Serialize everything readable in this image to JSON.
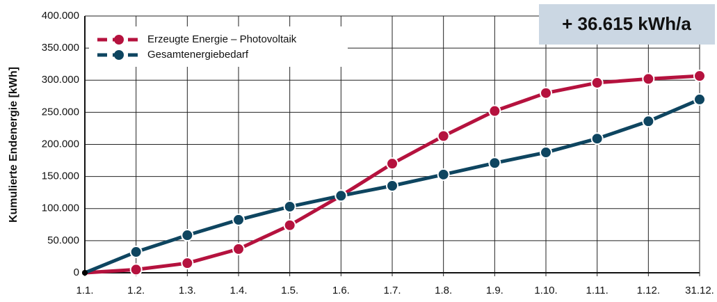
{
  "chart_data": {
    "type": "line",
    "ylabel": "Kumulierte Endenergie [kWh]",
    "annotation": "+ 36.615 kWh/a",
    "categories": [
      "1.1.",
      "1.2.",
      "1.3.",
      "1.4.",
      "1.5.",
      "1.6.",
      "1.7.",
      "1.8.",
      "1.9.",
      "1.10.",
      "1.11.",
      "1.12.",
      "31.12."
    ],
    "series": [
      {
        "name": "Erzeugte Energie – Photovoltaik",
        "color": "#b5123e",
        "values": [
          0,
          5000,
          15000,
          37000,
          74000,
          120000,
          170000,
          213000,
          252000,
          280000,
          296000,
          302000,
          306615
        ]
      },
      {
        "name": "Gesamtenergiebedarf",
        "color": "#0e4560",
        "values": [
          0,
          32500,
          58500,
          82500,
          103000,
          120000,
          135500,
          153000,
          171000,
          187500,
          209000,
          236000,
          270000
        ]
      }
    ],
    "ylim": [
      0,
      400000
    ],
    "yticks": [
      0,
      {
        "value": 50000,
        "label": "50.000"
      },
      {
        "value": 100000,
        "label": "100.000"
      },
      {
        "value": 150000,
        "label": "150.000"
      },
      {
        "value": 200000,
        "label": "200.000"
      },
      {
        "value": 250000,
        "label": "250.000"
      },
      {
        "value": 300000,
        "label": "300.000"
      },
      {
        "value": 350000,
        "label": "350.000"
      },
      {
        "value": 400000,
        "label": "400.000"
      }
    ],
    "grid": true,
    "legend": "upper left"
  }
}
